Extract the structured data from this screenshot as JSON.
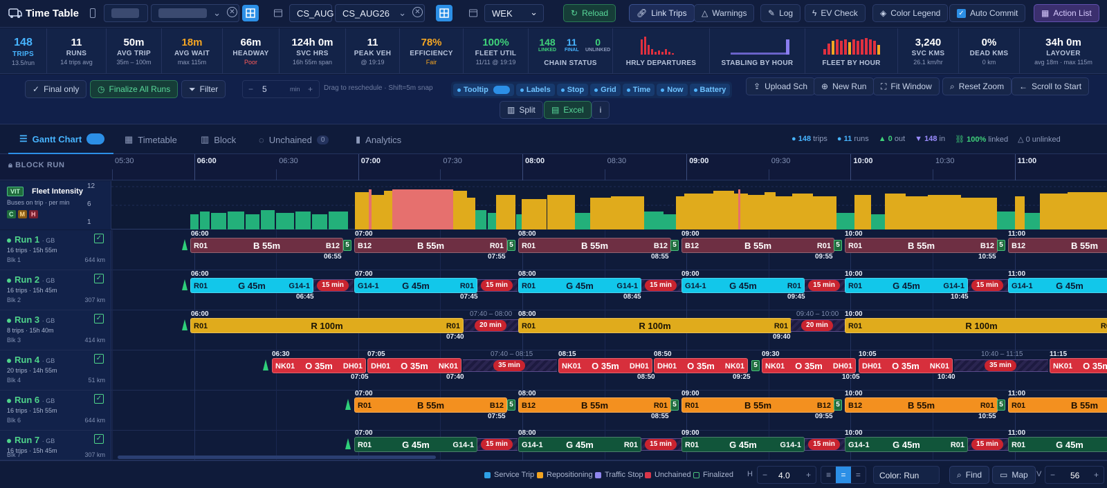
{
  "header": {
    "title": "Time Table",
    "schedule_a": "CS_AUG",
    "schedule_b": "CS_AUG26",
    "day": "WEK",
    "buttons": {
      "reload": "Reload",
      "link_trips": "Link Trips",
      "warnings": "Warnings",
      "log": "Log",
      "ev_check": "EV Check",
      "color_legend": "Color Legend",
      "auto_commit": "Auto Commit",
      "action_list": "Action List"
    }
  },
  "metrics": {
    "trips": {
      "value": "148",
      "label": "TRIPS",
      "sub": "13.5/run"
    },
    "runs": {
      "value": "11",
      "label": "RUNS",
      "sub": "14 trips avg"
    },
    "avg_trip": {
      "value": "50m",
      "label": "AVG TRIP",
      "sub": "35m – 100m"
    },
    "avg_wait": {
      "value": "18m",
      "label": "AVG WAIT",
      "sub": "max 115m"
    },
    "headway": {
      "value": "66m",
      "label": "HEADWAY",
      "sub": "Poor"
    },
    "svc_hrs": {
      "value": "124h 0m",
      "label": "SVC HRS",
      "sub": "16h 55m span"
    },
    "peak_veh": {
      "value": "11",
      "label": "PEAK VEH",
      "sub": "@ 19:19"
    },
    "efficiency": {
      "value": "78%",
      "label": "EFFICIENCY",
      "sub": "Fair"
    },
    "fleet_util": {
      "value": "100%",
      "label": "FLEET UTIL",
      "sub": "11/11 @ 19:19"
    },
    "chain": {
      "linked": "148",
      "final": "11",
      "unlinked": "0",
      "linked_label": "LINKED",
      "final_label": "FINAL",
      "unlinked_label": "UNLINKED",
      "label": "CHAIN STATUS"
    },
    "hrly_departures": {
      "label": "HRLY DEPARTURES"
    },
    "stabling": {
      "label": "STABLING BY HOUR"
    },
    "fleet_by_hour": {
      "label": "FLEET BY HOUR"
    },
    "svc_kms": {
      "value": "3,240",
      "label": "SVC KMS",
      "sub": "26.1 km/hr"
    },
    "dead_kms": {
      "value": "0%",
      "label": "DEAD KMS",
      "sub": "0 km"
    },
    "layover": {
      "value": "34h 0m",
      "label": "LAYOVER",
      "sub": "avg 18m · max 115m"
    }
  },
  "toolbar": {
    "final_only": "Final only",
    "finalize_all": "Finalize All Runs",
    "filter": "Filter",
    "step_value": "5",
    "step_unit": "min",
    "drag_hint": "Drag to reschedule · Shift=5m snap",
    "chips": [
      "Tooltip",
      "Labels",
      "Stop",
      "Grid",
      "Time",
      "Now",
      "Battery"
    ],
    "upload": "Upload Sch",
    "new_run": "New Run",
    "fit_window": "Fit Window",
    "reset_zoom": "Reset Zoom",
    "scroll_start": "Scroll to Start",
    "split": "Split",
    "excel": "Excel",
    "info": "i"
  },
  "tabs": {
    "gantt": "Gantt Chart",
    "timetable": "Timetable",
    "block": "Block",
    "unchained": "Unchained",
    "unchained_count": "0",
    "analytics": "Analytics"
  },
  "summary": {
    "trips": "148",
    "trips_label": "trips",
    "runs": "11",
    "runs_label": "runs",
    "out": "0",
    "out_label": "out",
    "in": "148",
    "in_label": "in",
    "linked": "100%",
    "linked_label": "linked",
    "unlinked": "0",
    "unlinked_label": "unlinked"
  },
  "axis": {
    "label": "BLOCK RUN",
    "ticks": [
      "05:30",
      "06:00",
      "06:30",
      "07:00",
      "07:30",
      "08:00",
      "08:30",
      "09:00",
      "09:30",
      "10:00",
      "10:30",
      "11:00"
    ]
  },
  "intensity": {
    "badge": "VIT",
    "title": "Fleet Intensity",
    "sub": "Buses on trip · per min",
    "levels": [
      "C",
      "M",
      "H"
    ],
    "y_ticks": [
      "12",
      "6",
      "1"
    ]
  },
  "runs": [
    {
      "name": "Run 1",
      "depot": "GB",
      "trips": "16 trips · 15h 55m",
      "blk": "Blk 1",
      "km": "644 km"
    },
    {
      "name": "Run 2",
      "depot": "GB",
      "trips": "16 trips · 15h 45m",
      "blk": "Blk 2",
      "km": "307 km"
    },
    {
      "name": "Run 3",
      "depot": "GB",
      "trips": "8 trips · 15h 40m",
      "blk": "Blk 3",
      "km": "414 km"
    },
    {
      "name": "Run 4",
      "depot": "GB",
      "trips": "20 trips · 14h 55m",
      "blk": "Blk 4",
      "km": "51 km"
    },
    {
      "name": "Run 6",
      "depot": "GB",
      "trips": "16 trips · 15h 55m",
      "blk": "Blk 6",
      "km": "644 km"
    },
    {
      "name": "Run 7",
      "depot": "GB",
      "trips": "16 trips · 15h 45m",
      "blk": "Blk 7",
      "km": "307 km"
    }
  ],
  "trip_labels": {
    "B": "B  55m",
    "G": "G  45m",
    "R": "R  100m",
    "O": "O  35m",
    "lay15": "15 min",
    "lay20": "20 min",
    "lay35": "35 min",
    "five": "5"
  },
  "footer": {
    "legend": [
      "Service Trip",
      "Repositioning",
      "Traffic Stop",
      "Unchained",
      "Finalized"
    ],
    "legend_colors": [
      "#2ea1e6",
      "#f2a421",
      "#8f86ee",
      "#d9364a",
      "#3a7a52"
    ],
    "h_label": "H",
    "h_value": "4.0",
    "color_by": "Color: Run",
    "find": "Find",
    "map": "Map",
    "v_label": "V",
    "v_value": "56"
  },
  "colors": {
    "accent": "#2c8fe6",
    "green": "#4fd58a",
    "blue_trip": "#12c7ea",
    "red_trip": "#d72f3c",
    "gold_trip": "#e0ab1c",
    "orange_trip": "#f3901f",
    "maroon_trip": "#6e2f43",
    "teal_trip": "#11553a"
  }
}
